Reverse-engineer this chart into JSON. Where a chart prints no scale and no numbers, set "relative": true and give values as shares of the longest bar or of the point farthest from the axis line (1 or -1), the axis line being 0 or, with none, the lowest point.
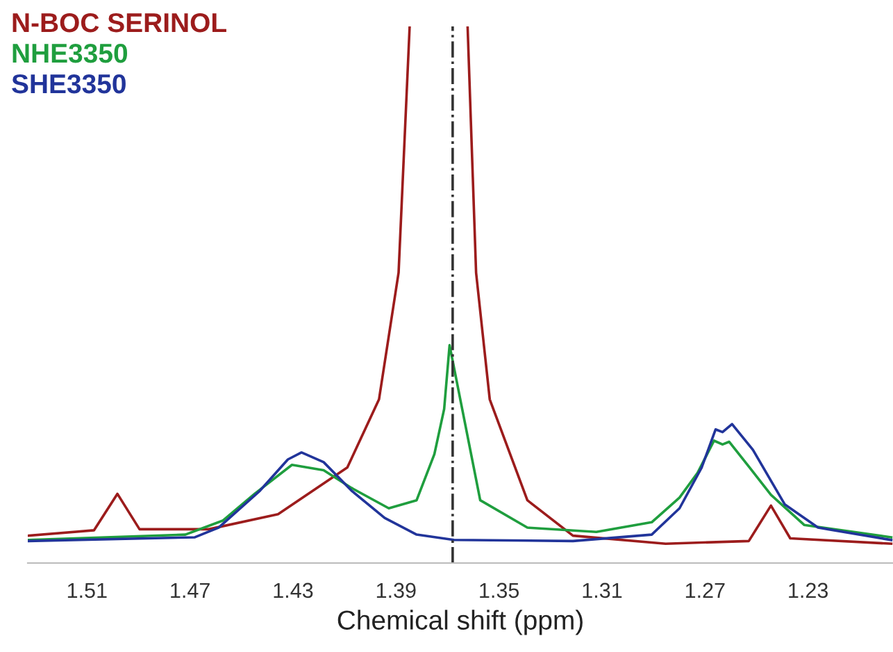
{
  "chart_data": {
    "type": "line",
    "xlabel": "Chemical shift (ppm)",
    "relative": true,
    "legend": "top left",
    "grid": false,
    "marker": "none",
    "line_style": "solid",
    "xlim": [
      1.533,
      1.197
    ],
    "xticks": [
      1.51,
      1.47,
      1.43,
      1.39,
      1.35,
      1.31,
      1.27,
      1.23
    ],
    "ref_lines": [
      {
        "axis": "x",
        "value": 1.368,
        "label": null,
        "color": "#333333",
        "line_style": "dashdot"
      }
    ],
    "series": [
      {
        "name": "N-BOC SERINOL",
        "color": "#9c1c1c",
        "x": [
          1.5326,
          1.5073,
          1.4982,
          1.4896,
          1.4627,
          1.4358,
          1.4089,
          1.3966,
          1.389,
          1.3847,
          1.3735,
          1.3622,
          1.3589,
          1.3536,
          1.339,
          1.3213,
          1.2853,
          1.253,
          1.2444,
          1.2369,
          1.1977
        ],
        "values": [
          0.051,
          0.061,
          0.129,
          0.063,
          0.063,
          0.091,
          0.178,
          0.305,
          0.541,
          1.0,
          null,
          1.0,
          0.541,
          0.305,
          0.117,
          0.051,
          0.036,
          0.041,
          0.107,
          0.046,
          0.036
        ]
      },
      {
        "name": "NHE3350",
        "color": "#1f9e3e",
        "x": [
          1.5326,
          1.4718,
          1.4573,
          1.4449,
          1.4304,
          1.4181,
          1.4073,
          1.3928,
          1.382,
          1.3751,
          1.3713,
          1.3692,
          1.3643,
          1.3573,
          1.339,
          1.3122,
          1.2907,
          1.2799,
          1.2729,
          1.2665,
          1.2632,
          1.2606,
          1.253,
          1.2444,
          1.2315,
          1.1977
        ],
        "values": [
          0.043,
          0.053,
          0.079,
          0.129,
          0.183,
          0.173,
          0.14,
          0.102,
          0.117,
          0.203,
          0.287,
          0.406,
          0.287,
          0.117,
          0.066,
          0.058,
          0.076,
          0.122,
          0.168,
          0.228,
          0.221,
          0.226,
          0.18,
          0.127,
          0.071,
          0.048
        ]
      },
      {
        "name": "SHE3350",
        "color": "#21349a",
        "x": [
          1.5326,
          1.4681,
          1.4589,
          1.4428,
          1.432,
          1.4267,
          1.4181,
          1.4073,
          1.3944,
          1.382,
          1.3675,
          1.3213,
          1.2907,
          1.2799,
          1.2713,
          1.2659,
          1.2632,
          1.2595,
          1.2514,
          1.239,
          1.2261,
          1.1977
        ],
        "values": [
          0.041,
          0.048,
          0.066,
          0.135,
          0.193,
          0.206,
          0.188,
          0.135,
          0.084,
          0.053,
          0.043,
          0.041,
          0.053,
          0.102,
          0.178,
          0.249,
          0.244,
          0.259,
          0.211,
          0.109,
          0.066,
          0.043
        ]
      }
    ]
  }
}
